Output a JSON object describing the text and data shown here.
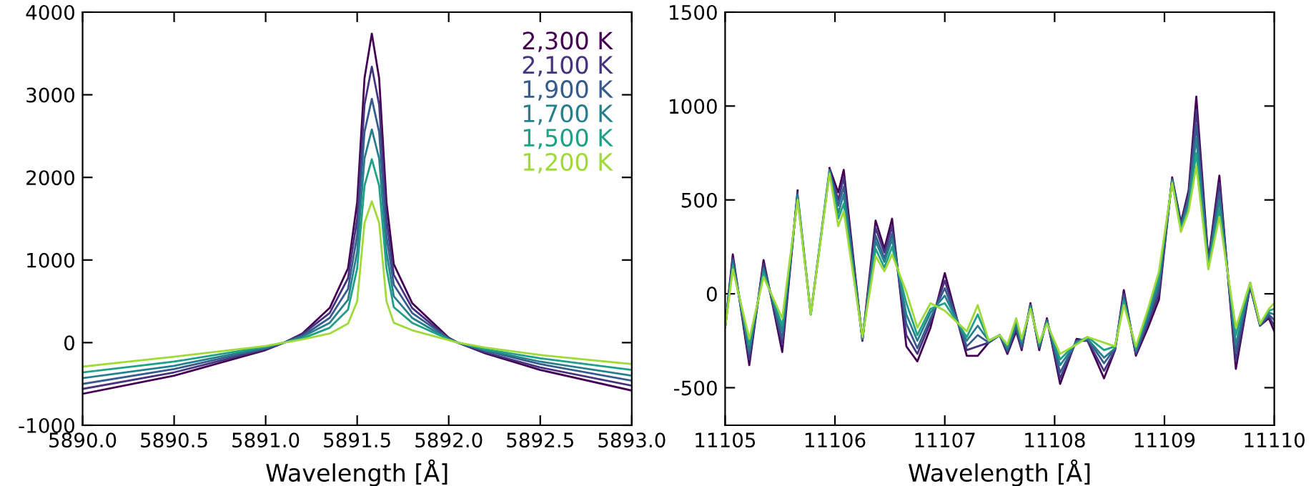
{
  "chart_data": [
    {
      "type": "line",
      "xlabel": "Wavelength [Å]",
      "legend": "top right",
      "grid": false,
      "marker": "none",
      "line_style": "solid",
      "xlim": [
        5890.0,
        5893.0
      ],
      "ylim": [
        -1000,
        4000
      ],
      "xticks": [
        {
          "value": 5890.0,
          "label": "5890.0"
        },
        {
          "value": 5890.5,
          "label": "5890.5"
        },
        {
          "value": 5891.0,
          "label": "5891.0"
        },
        {
          "value": 5891.5,
          "label": "5891.5"
        },
        {
          "value": 5892.0,
          "label": "5892.0"
        },
        {
          "value": 5892.5,
          "label": "5892.5"
        },
        {
          "value": 5893.0,
          "label": "5893.0"
        }
      ],
      "yticks": [
        -1000,
        0,
        1000,
        2000,
        3000,
        4000
      ],
      "x": [
        5890.0,
        5890.5,
        5891.0,
        5891.1,
        5891.2,
        5891.35,
        5891.45,
        5891.5,
        5891.54,
        5891.58,
        5891.62,
        5891.66,
        5891.7,
        5891.8,
        5892.0,
        5892.05,
        5892.2,
        5892.5,
        5893.0
      ],
      "series": [
        {
          "name": "2,300 K",
          "color": "#440154",
          "values": [
            -620,
            -400,
            -90,
            0,
            110,
            420,
            900,
            1700,
            3200,
            3740,
            3200,
            1700,
            950,
            480,
            60,
            0,
            -130,
            -330,
            -580
          ]
        },
        {
          "name": "2,100 K",
          "color": "#46327e",
          "values": [
            -560,
            -360,
            -80,
            0,
            100,
            360,
            780,
            1500,
            2880,
            3340,
            2880,
            1500,
            820,
            420,
            50,
            0,
            -120,
            -300,
            -520
          ]
        },
        {
          "name": "1,900 K",
          "color": "#365c8d",
          "values": [
            -500,
            -320,
            -70,
            0,
            80,
            300,
            650,
            1300,
            2550,
            2950,
            2550,
            1300,
            700,
            360,
            50,
            0,
            -100,
            -260,
            -460
          ]
        },
        {
          "name": "1,700 K",
          "color": "#277f8e",
          "values": [
            -430,
            -280,
            -60,
            0,
            70,
            240,
            520,
            1100,
            2230,
            2580,
            2230,
            1100,
            560,
            300,
            40,
            0,
            -90,
            -230,
            -400
          ]
        },
        {
          "name": "1,500 K",
          "color": "#1fa187",
          "values": [
            -360,
            -230,
            -50,
            0,
            50,
            180,
            400,
            900,
            1900,
            2220,
            1900,
            900,
            430,
            240,
            40,
            0,
            -80,
            -190,
            -330
          ]
        },
        {
          "name": "1,200 K",
          "color": "#a0da39",
          "values": [
            -290,
            -170,
            -40,
            0,
            40,
            110,
            230,
            500,
            1450,
            1710,
            1450,
            500,
            240,
            150,
            30,
            0,
            -60,
            -150,
            -260
          ]
        }
      ]
    },
    {
      "type": "line",
      "xlabel": "Wavelength [Å]",
      "grid": false,
      "marker": "none",
      "line_style": "solid",
      "xlim": [
        11105,
        11110
      ],
      "ylim": [
        -700,
        1500
      ],
      "xticks": [
        11105,
        11106,
        11107,
        11108,
        11109,
        11110
      ],
      "yticks": [
        -500,
        0,
        500,
        1000,
        1500
      ],
      "x": [
        11105.0,
        11105.07,
        11105.22,
        11105.35,
        11105.52,
        11105.66,
        11105.78,
        11105.95,
        11106.03,
        11106.08,
        11106.25,
        11106.37,
        11106.45,
        11106.52,
        11106.65,
        11106.75,
        11106.87,
        11107.0,
        11107.2,
        11107.3,
        11107.4,
        11107.5,
        11107.57,
        11107.65,
        11107.7,
        11107.78,
        11107.86,
        11107.93,
        11108.05,
        11108.2,
        11108.3,
        11108.45,
        11108.55,
        11108.63,
        11108.74,
        11108.85,
        11108.95,
        11109.07,
        11109.15,
        11109.22,
        11109.29,
        11109.4,
        11109.5,
        11109.65,
        11109.78,
        11109.87,
        11109.95,
        11110.0
      ],
      "series": [
        {
          "color": "#440154",
          "values": [
            -180,
            210,
            -380,
            180,
            -310,
            550,
            null,
            670,
            540,
            660,
            -250,
            390,
            240,
            400,
            -280,
            -360,
            -180,
            110,
            -330,
            -330,
            -260,
            -220,
            -320,
            -200,
            -300,
            -50,
            -300,
            -130,
            -480,
            -240,
            -250,
            -450,
            -300,
            20,
            -330,
            -180,
            -30,
            620,
            380,
            550,
            1050,
            180,
            630,
            -400,
            40,
            -170,
            -130,
            -200
          ]
        },
        {
          "color": "#46327e",
          "values": [
            -180,
            190,
            -350,
            160,
            -270,
            540,
            null,
            660,
            500,
            620,
            -250,
            350,
            220,
            360,
            -220,
            -320,
            -150,
            70,
            -300,
            -280,
            -260,
            -220,
            -310,
            -190,
            -290,
            -60,
            -290,
            -140,
            -450,
            -250,
            -250,
            -410,
            -300,
            0,
            -320,
            -160,
            0,
            610,
            370,
            530,
            980,
            170,
            590,
            -360,
            40,
            -170,
            -120,
            -170
          ]
        },
        {
          "color": "#365c8d",
          "values": [
            -180,
            180,
            -320,
            140,
            -240,
            530,
            -110,
            660,
            470,
            570,
            -240,
            310,
            190,
            320,
            -160,
            -290,
            -130,
            30,
            -280,
            -220,
            -260,
            -220,
            -300,
            -170,
            -280,
            -60,
            -280,
            -140,
            -420,
            -250,
            -240,
            -370,
            -290,
            -10,
            -310,
            -140,
            30,
            610,
            360,
            510,
            900,
            160,
            540,
            -310,
            50,
            -170,
            -110,
            -140
          ]
        },
        {
          "color": "#277f8e",
          "values": [
            -180,
            160,
            -300,
            130,
            -200,
            520,
            -110,
            650,
            430,
            530,
            -240,
            280,
            170,
            290,
            -110,
            -250,
            -100,
            -10,
            -250,
            -170,
            -250,
            -220,
            -290,
            -160,
            -260,
            -70,
            -280,
            -150,
            -380,
            -260,
            -240,
            -340,
            -290,
            -30,
            -300,
            -120,
            60,
            600,
            350,
            480,
            830,
            150,
            500,
            -270,
            50,
            -160,
            -100,
            -110
          ]
        },
        {
          "color": "#1fa187",
          "values": [
            -180,
            150,
            -270,
            110,
            -170,
            510,
            -110,
            650,
            400,
            480,
            -230,
            240,
            140,
            250,
            -50,
            -220,
            -80,
            -50,
            -230,
            -110,
            -250,
            -220,
            -280,
            -140,
            -250,
            -70,
            -270,
            -150,
            -350,
            -260,
            -230,
            -300,
            -280,
            -40,
            -290,
            -100,
            90,
            600,
            340,
            460,
            750,
            140,
            450,
            -220,
            60,
            -160,
            -90,
            -80
          ]
        },
        {
          "color": "#a0da39",
          "values": [
            -180,
            130,
            -240,
            90,
            -130,
            500,
            -110,
            640,
            360,
            440,
            -230,
            200,
            120,
            210,
            10,
            -180,
            -50,
            -90,
            -200,
            -60,
            -250,
            -220,
            -270,
            -130,
            -240,
            -80,
            -260,
            -160,
            -320,
            -270,
            -230,
            -260,
            -280,
            -60,
            -280,
            -80,
            120,
            590,
            330,
            440,
            680,
            130,
            410,
            -180,
            60,
            -160,
            -80,
            -50
          ]
        }
      ]
    }
  ]
}
